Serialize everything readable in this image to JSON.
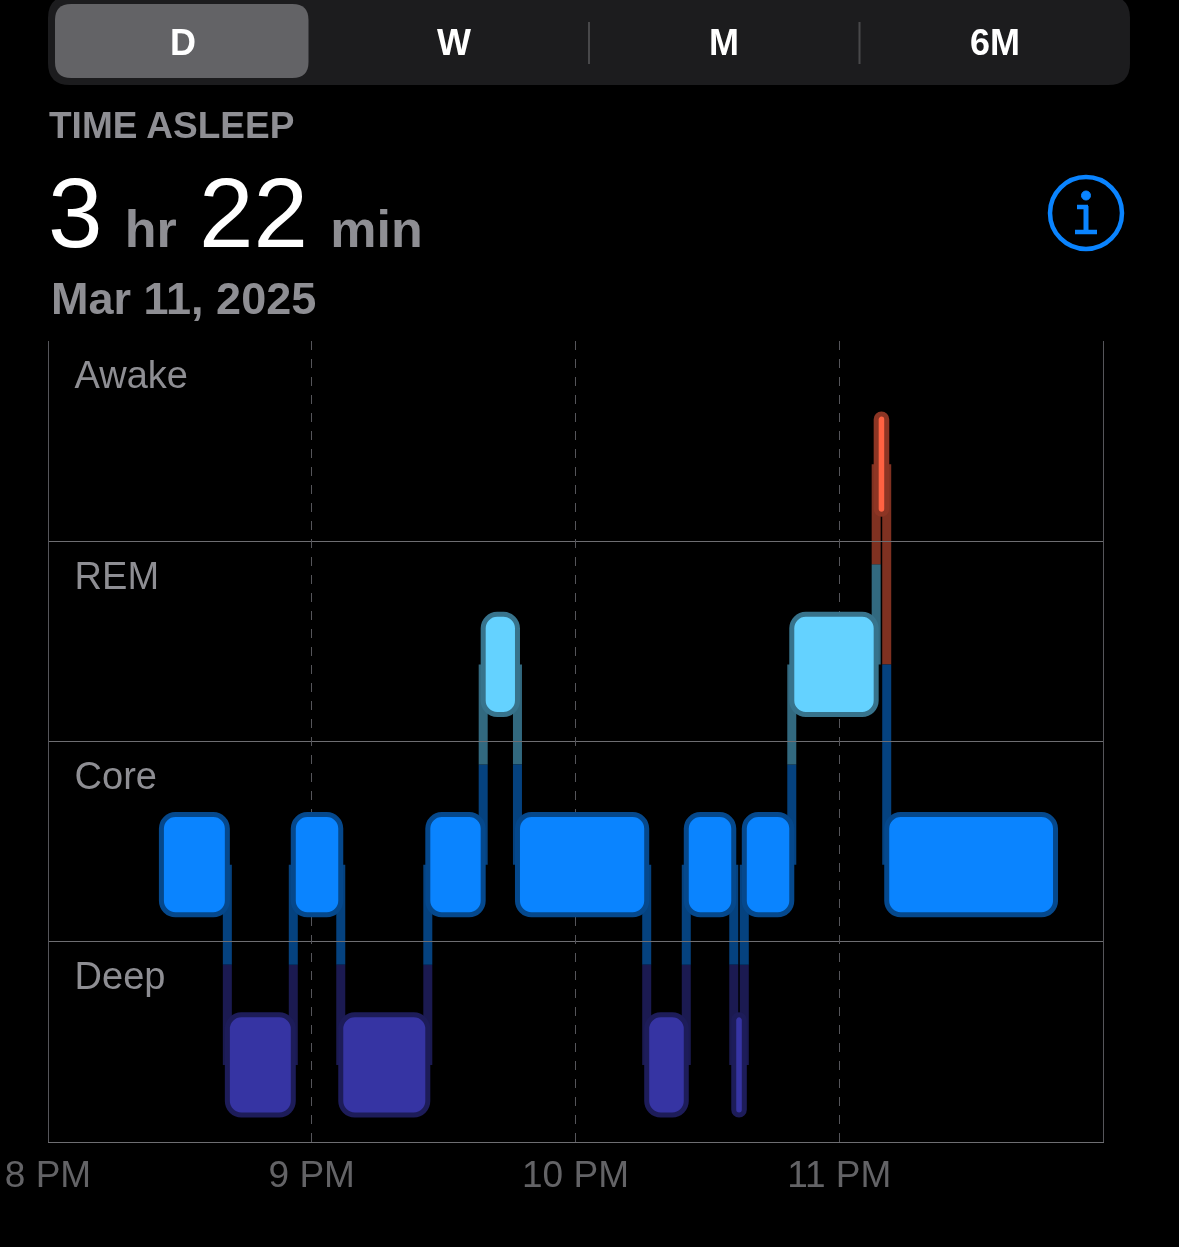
{
  "chart_data": {
    "type": "bar",
    "orientation": "horizontal",
    "title": "TIME ASLEEP",
    "subtitle": "3 hr 22 min",
    "annotations": [
      "D",
      "W",
      "M",
      "6M",
      "Mar 11, 2025"
    ],
    "categories": [
      "Awake",
      "REM",
      "Core",
      "Deep"
    ],
    "series": [
      {
        "colors": [
          "#ff6242",
          "#64d2ff",
          "#0a84ff",
          "#3634a3"
        ],
        "base": [
          11.14,
          9.65,
          8.43,
          8.68
        ],
        "values": [
          0.04,
          0.13,
          0.25,
          0.25
        ]
      },
      {
        "colors": [
          null,
          "#64d2ff",
          "#0a84ff",
          "#3634a3"
        ],
        "base": [
          null,
          10.82,
          8.93,
          9.11
        ],
        "values": [
          null,
          0.32,
          0.18,
          0.33
        ]
      },
      {
        "colors": [
          null,
          null,
          "#0a84ff",
          "#3634a3"
        ],
        "base": [
          null,
          null,
          9.44,
          10.27
        ],
        "values": [
          null,
          null,
          0.21,
          0.15
        ]
      },
      {
        "colors": [
          null,
          null,
          "#0a84ff",
          "#3634a3"
        ],
        "base": [
          null,
          null,
          9.78,
          10.6
        ],
        "values": [
          null,
          null,
          0.49,
          0.04
        ]
      },
      {
        "colors": [
          null,
          null,
          "#0a84ff",
          null
        ],
        "base": [
          null,
          null,
          10.42,
          null
        ],
        "values": [
          null,
          null,
          0.18,
          null
        ]
      },
      {
        "colors": [
          null,
          null,
          "#0a84ff",
          null
        ],
        "base": [
          null,
          null,
          10.64,
          null
        ],
        "values": [
          null,
          null,
          0.18,
          null
        ]
      },
      {
        "colors": [
          null,
          null,
          "#0a84ff",
          null
        ],
        "base": [
          null,
          null,
          11.18,
          null
        ],
        "values": [
          null,
          null,
          0.64,
          null
        ]
      }
    ],
    "xlim": [
      8,
      12
    ],
    "xticks": [
      {
        "value": 8,
        "label": "8 PM"
      },
      {
        "value": 9,
        "label": "9 PM"
      },
      {
        "value": 10,
        "label": "10 PM"
      },
      {
        "value": 11,
        "label": "11 PM"
      }
    ],
    "grid": true
  }
}
